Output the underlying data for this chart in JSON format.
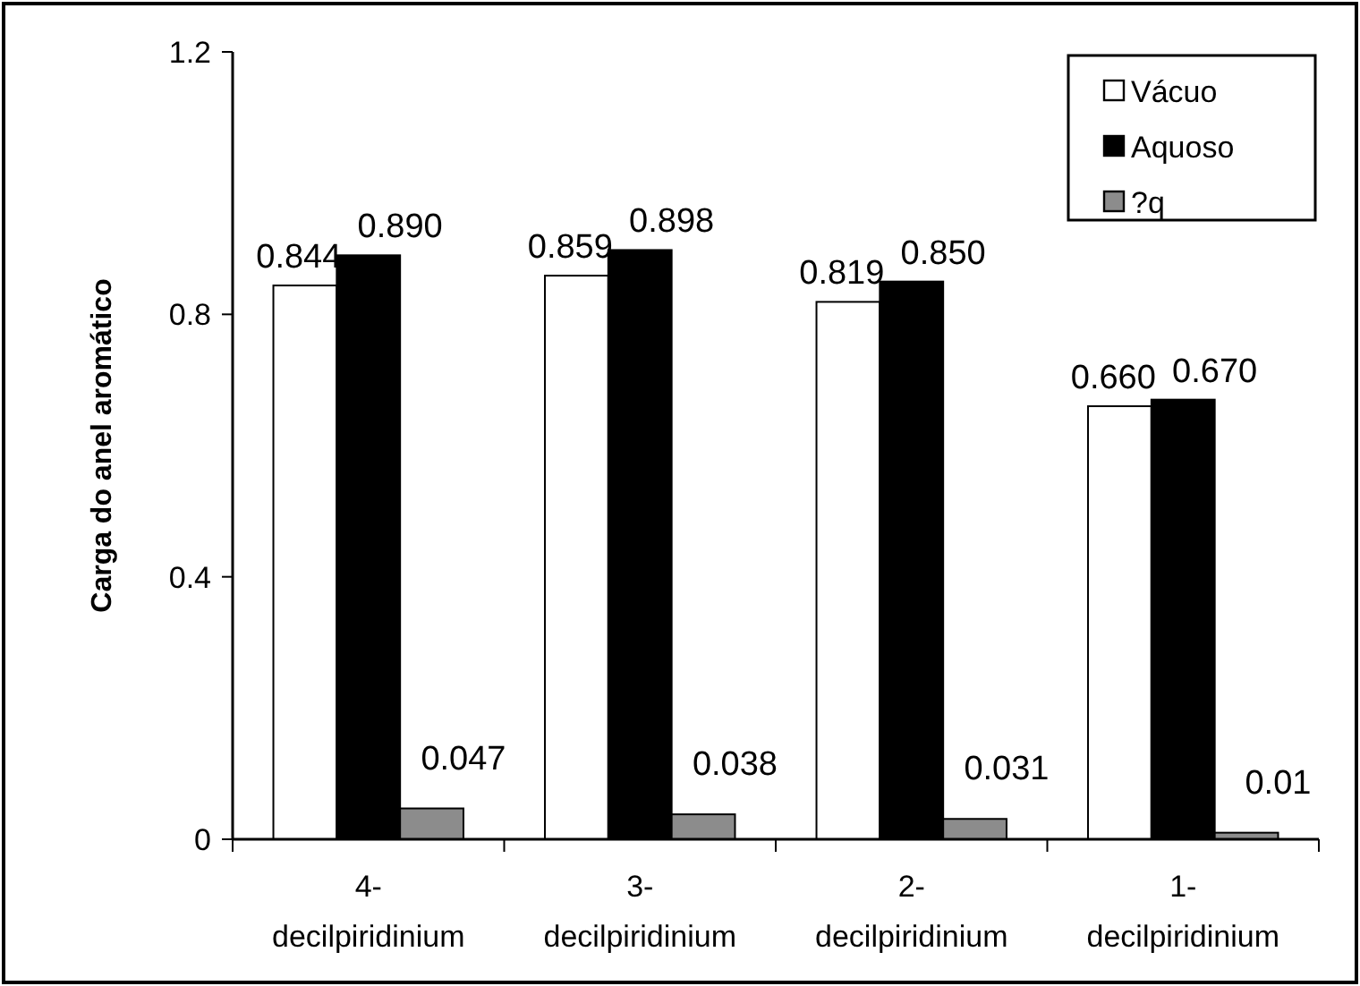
{
  "chart_data": {
    "type": "bar",
    "ylabel": "Carga do anel aromático",
    "categories": [
      "4- decilpiridinium",
      "3- decilpiridinium",
      "2- decilpiridinium",
      "1- decilpiridinium"
    ],
    "series": [
      {
        "name": "Vácuo",
        "color": "#ffffff",
        "values": [
          0.844,
          0.859,
          0.819,
          0.66
        ],
        "value_labels": [
          "0.844",
          "0.859",
          "0.819",
          "0.660"
        ]
      },
      {
        "name": "Aquoso",
        "color": "#000000",
        "values": [
          0.89,
          0.898,
          0.85,
          0.67
        ],
        "value_labels": [
          "0.890",
          "0.898",
          "0.850",
          "0.670"
        ]
      },
      {
        "name": "?q",
        "color": "#8c8c8c",
        "values": [
          0.047,
          0.038,
          0.031,
          0.01
        ],
        "value_labels": [
          "0.047",
          "0.038",
          "0.031",
          "0.01"
        ]
      }
    ],
    "ylim": [
      0,
      1.2
    ],
    "yticks": [
      0,
      {
        "value": 0.4,
        "label": "0.4"
      },
      {
        "value": 0.8,
        "label": "0.8"
      },
      {
        "value": 1.2,
        "label": "1.2"
      }
    ],
    "legend": "top right",
    "grid": false
  }
}
